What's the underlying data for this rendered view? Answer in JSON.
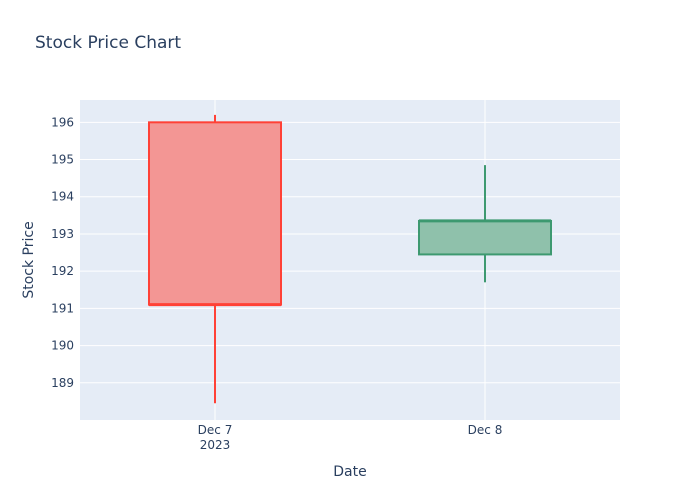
{
  "chart_data": {
    "type": "candlestick",
    "title": "Stock Price Chart",
    "xlabel": "Date",
    "ylabel": "Stock Price",
    "categories": [
      "Dec 7",
      "Dec 8"
    ],
    "x_sublabels": [
      "2023",
      ""
    ],
    "ylim": [
      188,
      196.6
    ],
    "yticks": [
      189,
      190,
      191,
      192,
      193,
      194,
      195,
      196
    ],
    "candles": [
      {
        "date": "Dec 7",
        "open": 196.0,
        "high": 196.2,
        "low": 188.45,
        "close": 191.1,
        "direction": "decreasing"
      },
      {
        "date": "Dec 8",
        "open": 192.45,
        "high": 194.85,
        "low": 191.7,
        "close": 193.35,
        "direction": "increasing"
      }
    ],
    "colors": {
      "increasing_line": "#3d9970",
      "increasing_fill": "#8fc1ab",
      "decreasing_line": "#ff4136",
      "decreasing_fill": "#f39694",
      "plot_bg": "#e5ecf6",
      "grid": "#ffffff"
    },
    "grid": true,
    "legend": "none"
  }
}
